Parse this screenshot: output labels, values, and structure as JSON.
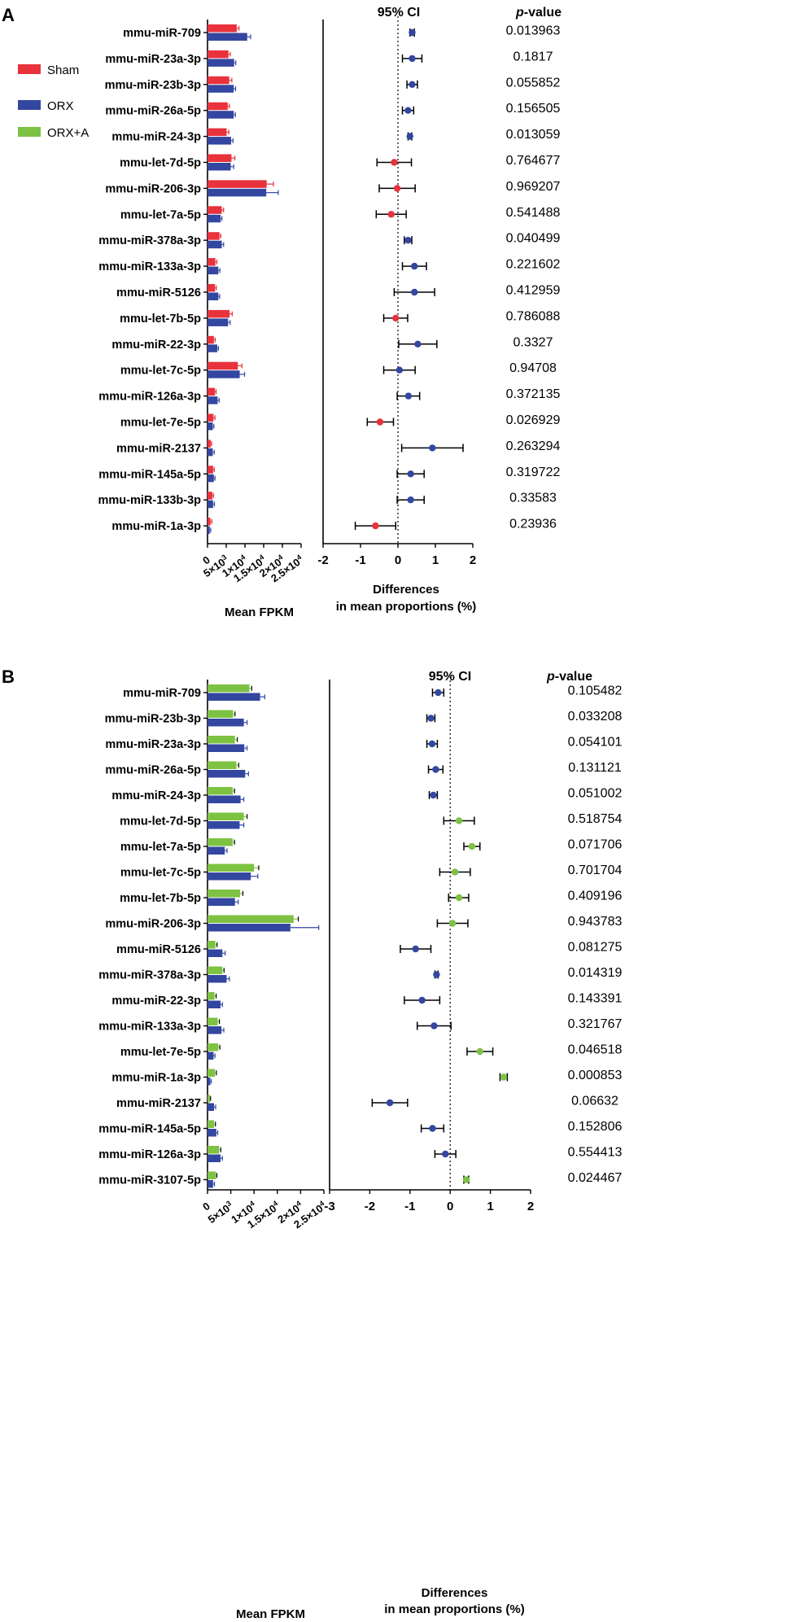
{
  "chart_data": [
    {
      "panel_label": "A",
      "type": "bar",
      "orientation": "horizontal",
      "error_bars": true,
      "title": "",
      "xlabel": "Mean FPKM",
      "ylabel": "",
      "xlim": [
        0,
        25000
      ],
      "x_ticks": [
        {
          "value": 0,
          "base": "0",
          "exp": ""
        },
        {
          "value": 5000,
          "base": "5×10",
          "exp": "3"
        },
        {
          "value": 10000,
          "base": "1×10",
          "exp": "4"
        },
        {
          "value": 15000,
          "base": "1.5×10",
          "exp": "4"
        },
        {
          "value": 20000,
          "base": "2×10",
          "exp": "4"
        },
        {
          "value": 25000,
          "base": "2.5×10",
          "exp": "4"
        }
      ],
      "categories": [
        "mmu-miR-709",
        "mmu-miR-23a-3p",
        "mmu-miR-23b-3p",
        "mmu-miR-26a-5p",
        "mmu-miR-24-3p",
        "mmu-let-7d-5p",
        "mmu-miR-206-3p",
        "mmu-let-7a-5p",
        "mmu-miR-378a-3p",
        "mmu-miR-133a-3p",
        "mmu-miR-5126",
        "mmu-let-7b-5p",
        "mmu-miR-22-3p",
        "mmu-let-7c-5p",
        "mmu-miR-126a-3p",
        "mmu-let-7e-5p",
        "mmu-miR-2137",
        "mmu-miR-145a-5p",
        "mmu-miR-133b-3p",
        "mmu-miR-1a-3p"
      ],
      "series": [
        {
          "name": "Sham",
          "color": "#e8323c",
          "values": [
            7800,
            5600,
            5800,
            5400,
            5100,
            6400,
            15800,
            3800,
            3200,
            2100,
            2000,
            5900,
            1700,
            8100,
            2000,
            1600,
            850,
            1500,
            1300,
            800
          ],
          "errors": [
            600,
            500,
            700,
            450,
            600,
            900,
            1800,
            500,
            350,
            400,
            350,
            700,
            350,
            1100,
            300,
            400,
            250,
            300,
            300,
            350
          ]
        },
        {
          "name": "ORX",
          "color": "#3346a0",
          "values": [
            10600,
            7100,
            7000,
            7000,
            6300,
            6200,
            15700,
            3500,
            3800,
            2900,
            2900,
            5500,
            2600,
            8600,
            2700,
            1400,
            1400,
            1700,
            1500,
            600
          ],
          "errors": [
            900,
            450,
            500,
            450,
            500,
            800,
            3200,
            350,
            500,
            400,
            350,
            550,
            300,
            1300,
            400,
            300,
            400,
            300,
            350,
            250
          ]
        }
      ],
      "ci_header": "95% CI",
      "pvalue_header_italic": "p",
      "pvalue_header_rest": "-value",
      "ci_xlabel_line1": "Differences",
      "ci_xlabel_line2": "in mean proportions (%)",
      "ci_xlim": [
        -2,
        2
      ],
      "ci_ticks": [
        -2,
        -1,
        0,
        1,
        2
      ],
      "ci_points": [
        {
          "mean": 0.38,
          "low": 0.32,
          "high": 0.44,
          "color": "#3346a0"
        },
        {
          "mean": 0.38,
          "low": 0.12,
          "high": 0.64,
          "color": "#3346a0"
        },
        {
          "mean": 0.38,
          "low": 0.24,
          "high": 0.52,
          "color": "#3346a0"
        },
        {
          "mean": 0.27,
          "low": 0.12,
          "high": 0.42,
          "color": "#3346a0"
        },
        {
          "mean": 0.32,
          "low": 0.27,
          "high": 0.37,
          "color": "#3346a0"
        },
        {
          "mean": -0.1,
          "low": -0.56,
          "high": 0.36,
          "color": "#e8323c"
        },
        {
          "mean": -0.02,
          "low": -0.5,
          "high": 0.46,
          "color": "#e8323c"
        },
        {
          "mean": -0.18,
          "low": -0.58,
          "high": 0.22,
          "color": "#e8323c"
        },
        {
          "mean": 0.27,
          "low": 0.17,
          "high": 0.37,
          "color": "#3346a0"
        },
        {
          "mean": 0.44,
          "low": 0.12,
          "high": 0.76,
          "color": "#3346a0"
        },
        {
          "mean": 0.44,
          "low": -0.1,
          "high": 0.98,
          "color": "#3346a0"
        },
        {
          "mean": -0.06,
          "low": -0.38,
          "high": 0.26,
          "color": "#e8323c"
        },
        {
          "mean": 0.53,
          "low": 0.02,
          "high": 1.04,
          "color": "#3346a0"
        },
        {
          "mean": 0.04,
          "low": -0.38,
          "high": 0.46,
          "color": "#3346a0"
        },
        {
          "mean": 0.28,
          "low": -0.02,
          "high": 0.58,
          "color": "#3346a0"
        },
        {
          "mean": -0.48,
          "low": -0.82,
          "high": -0.12,
          "color": "#e8323c"
        },
        {
          "mean": 0.92,
          "low": 0.1,
          "high": 1.74,
          "color": "#3346a0"
        },
        {
          "mean": 0.34,
          "low": -0.02,
          "high": 0.7,
          "color": "#3346a0"
        },
        {
          "mean": 0.34,
          "low": -0.02,
          "high": 0.7,
          "color": "#3346a0"
        },
        {
          "mean": -0.6,
          "low": -1.14,
          "high": -0.06,
          "color": "#e8323c"
        }
      ],
      "p_values": [
        "0.013963",
        "0.1817",
        "0.055852",
        "0.156505",
        "0.013059",
        "0.764677",
        "0.969207",
        "0.541488",
        "0.040499",
        "0.221602",
        "0.412959",
        "0.786088",
        "0.3327",
        "0.94708",
        "0.372135",
        "0.026929",
        "0.263294",
        "0.319722",
        "0.33583",
        "0.23936"
      ]
    },
    {
      "panel_label": "B",
      "type": "bar",
      "orientation": "horizontal",
      "error_bars": true,
      "title": "",
      "xlabel": "Mean FPKM",
      "ylabel": "",
      "xlim": [
        0,
        25000
      ],
      "x_ticks": [
        {
          "value": 0,
          "base": "0",
          "exp": ""
        },
        {
          "value": 5000,
          "base": "5×10",
          "exp": "3"
        },
        {
          "value": 10000,
          "base": "1×10",
          "exp": "4"
        },
        {
          "value": 15000,
          "base": "1.5×10",
          "exp": "4"
        },
        {
          "value": 20000,
          "base": "2×10",
          "exp": "4"
        },
        {
          "value": 25000,
          "base": "2.5×10",
          "exp": "4"
        }
      ],
      "categories": [
        "mmu-miR-709",
        "mmu-miR-23b-3p",
        "mmu-miR-23a-3p",
        "mmu-miR-26a-5p",
        "mmu-miR-24-3p",
        "mmu-let-7d-5p",
        "mmu-let-7a-5p",
        "mmu-let-7c-5p",
        "mmu-let-7b-5p",
        "mmu-miR-206-3p",
        "mmu-miR-5126",
        "mmu-miR-378a-3p",
        "mmu-miR-22-3p",
        "mmu-miR-133a-3p",
        "mmu-let-7e-5p",
        "mmu-miR-1a-3p",
        "mmu-miR-2137",
        "mmu-miR-145a-5p",
        "mmu-miR-126a-3p",
        "mmu-miR-3107-5p"
      ],
      "series": [
        {
          "name": "ORX+A",
          "color": "#7dc242",
          "values": [
            9000,
            5500,
            5900,
            6200,
            5400,
            7800,
            5400,
            10000,
            7000,
            18500,
            1700,
            3200,
            1500,
            2200,
            2300,
            1600,
            500,
            1400,
            2500,
            1800
          ],
          "errors": [
            500,
            400,
            500,
            500,
            400,
            700,
            400,
            1000,
            600,
            1000,
            350,
            350,
            350,
            350,
            350,
            300,
            150,
            300,
            350,
            200
          ]
        },
        {
          "name": "ORX",
          "color": "#3346a0",
          "values": [
            11300,
            7800,
            7900,
            8100,
            7100,
            6900,
            3700,
            9300,
            5900,
            17800,
            3200,
            4100,
            2800,
            3000,
            1300,
            600,
            1400,
            1900,
            2800,
            1200
          ],
          "errors": [
            1000,
            700,
            600,
            700,
            700,
            900,
            500,
            1500,
            700,
            6100,
            600,
            600,
            400,
            500,
            300,
            200,
            350,
            300,
            400,
            300
          ]
        }
      ],
      "ci_header": "95% CI",
      "pvalue_header_italic": "p",
      "pvalue_header_rest": "-value",
      "ci_xlabel_line1": "Differences",
      "ci_xlabel_line2": "in mean proportions (%)",
      "ci_xlim": [
        -3,
        2
      ],
      "ci_ticks": [
        -3,
        -2,
        -1,
        0,
        1,
        2
      ],
      "ci_points": [
        {
          "mean": -0.3,
          "low": -0.44,
          "high": -0.16,
          "color": "#3346a0"
        },
        {
          "mean": -0.48,
          "low": -0.58,
          "high": -0.38,
          "color": "#3346a0"
        },
        {
          "mean": -0.45,
          "low": -0.58,
          "high": -0.32,
          "color": "#3346a0"
        },
        {
          "mean": -0.36,
          "low": -0.54,
          "high": -0.18,
          "color": "#3346a0"
        },
        {
          "mean": -0.42,
          "low": -0.52,
          "high": -0.32,
          "color": "#3346a0"
        },
        {
          "mean": 0.22,
          "low": -0.16,
          "high": 0.6,
          "color": "#7dc242"
        },
        {
          "mean": 0.54,
          "low": 0.34,
          "high": 0.74,
          "color": "#7dc242"
        },
        {
          "mean": 0.12,
          "low": -0.26,
          "high": 0.5,
          "color": "#7dc242"
        },
        {
          "mean": 0.22,
          "low": -0.04,
          "high": 0.46,
          "color": "#7dc242"
        },
        {
          "mean": 0.06,
          "low": -0.32,
          "high": 0.44,
          "color": "#7dc242"
        },
        {
          "mean": -0.86,
          "low": -1.24,
          "high": -0.48,
          "color": "#3346a0"
        },
        {
          "mean": -0.34,
          "low": -0.38,
          "high": -0.3,
          "color": "#3346a0"
        },
        {
          "mean": -0.7,
          "low": -1.14,
          "high": -0.26,
          "color": "#3346a0"
        },
        {
          "mean": -0.4,
          "low": -0.82,
          "high": 0.02,
          "color": "#3346a0"
        },
        {
          "mean": 0.74,
          "low": 0.42,
          "high": 1.06,
          "color": "#7dc242"
        },
        {
          "mean": 1.33,
          "low": 1.24,
          "high": 1.42,
          "color": "#7dc242"
        },
        {
          "mean": -1.5,
          "low": -1.94,
          "high": -1.06,
          "color": "#3346a0"
        },
        {
          "mean": -0.44,
          "low": -0.72,
          "high": -0.16,
          "color": "#3346a0"
        },
        {
          "mean": -0.12,
          "low": -0.38,
          "high": 0.14,
          "color": "#3346a0"
        },
        {
          "mean": 0.4,
          "low": 0.34,
          "high": 0.46,
          "color": "#7dc242"
        }
      ],
      "p_values": [
        "0.105482",
        "0.033208",
        "0.054101",
        "0.131121",
        "0.051002",
        "0.518754",
        "0.071706",
        "0.701704",
        "0.409196",
        "0.943783",
        "0.081275",
        "0.014319",
        "0.143391",
        "0.321767",
        "0.046518",
        "0.000853",
        "0.06632",
        "0.152806",
        "0.554413",
        "0.024467"
      ]
    }
  ],
  "legend": [
    {
      "label": "Sham",
      "color": "#e8323c"
    },
    {
      "label": "ORX",
      "color": "#3346a0"
    },
    {
      "label": "ORX+A",
      "color": "#7dc242"
    }
  ]
}
